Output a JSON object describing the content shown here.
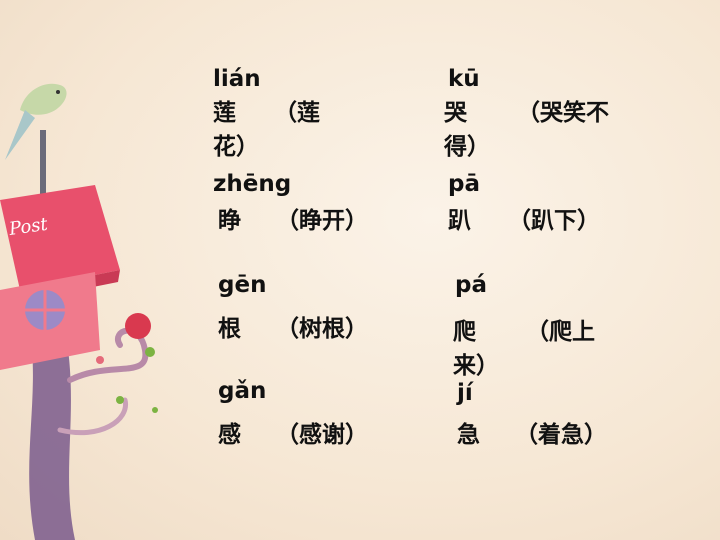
{
  "decoration": {
    "sign_text": "Post"
  },
  "left": [
    {
      "pinyin": "lián",
      "char": "莲",
      "word": "（莲花）"
    },
    {
      "pinyin": "zhēng",
      "char": "睁",
      "word": "（睁开）"
    },
    {
      "pinyin": "gēn",
      "char": "根",
      "word": "（树根）"
    },
    {
      "pinyin": "gǎn",
      "char": "感",
      "word": "（感谢）"
    }
  ],
  "right": [
    {
      "pinyin": "kū",
      "char": "哭",
      "word": "（哭笑不得）"
    },
    {
      "pinyin": "pā",
      "char": "趴",
      "word": "（趴下）"
    },
    {
      "pinyin": "pá",
      "char": "爬",
      "word": "（爬上来）"
    },
    {
      "pinyin": "jí",
      "char": "急",
      "word": "（着急）"
    }
  ],
  "colors": {
    "background": "#f6e7d4",
    "mailbox": "#e8506c",
    "text": "#111111"
  }
}
